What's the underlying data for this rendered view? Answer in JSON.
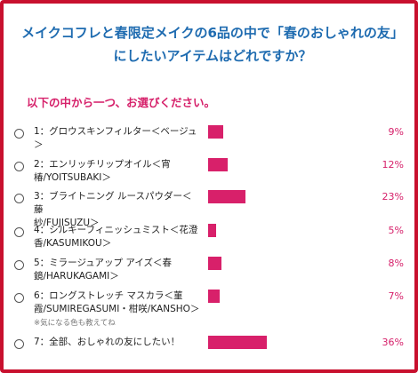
{
  "title_lines": [
    "メイクコフレと春限定メイクの6品の中で「春のおしゃれの友」",
    "にしたいアイテムはどれですか？"
  ],
  "subtitle": "以下の中から一つ、お選びください。",
  "accent_color": "#d8206a",
  "options": [
    {
      "lines": [
        "1：グロウスキンフィルター＜ベージュ",
        "＞"
      ],
      "percent": 9,
      "percent_label": "9%"
    },
    {
      "lines": [
        "2：エンリッチリップオイル＜宵",
        "椿/YOITSUBAKI＞"
      ],
      "percent": 12,
      "percent_label": "12%"
    },
    {
      "lines": [
        "3：ブライトニング ルースパウダー＜藤",
        "紗/FUJISUZU＞"
      ],
      "percent": 23,
      "percent_label": "23%"
    },
    {
      "lines": [
        "4：シルキーフィニッシュミスト＜花澄",
        "香/KASUMIKOU＞"
      ],
      "percent": 5,
      "percent_label": "5%"
    },
    {
      "lines": [
        "5：ミラージュアップ アイズ＜春",
        "鏡/HARUKAGAMI＞"
      ],
      "percent": 8,
      "percent_label": "8%"
    },
    {
      "lines": [
        "6：ロングストレッチ マスカラ＜菫",
        "霞/SUMIREGASUMI・柑咲/KANSHO＞"
      ],
      "note": "※気になる色も教えてね",
      "percent": 7,
      "percent_label": "7%"
    },
    {
      "lines": [
        "7：全部、おしゃれの友にしたい！"
      ],
      "percent": 36,
      "percent_label": "36%"
    }
  ]
}
